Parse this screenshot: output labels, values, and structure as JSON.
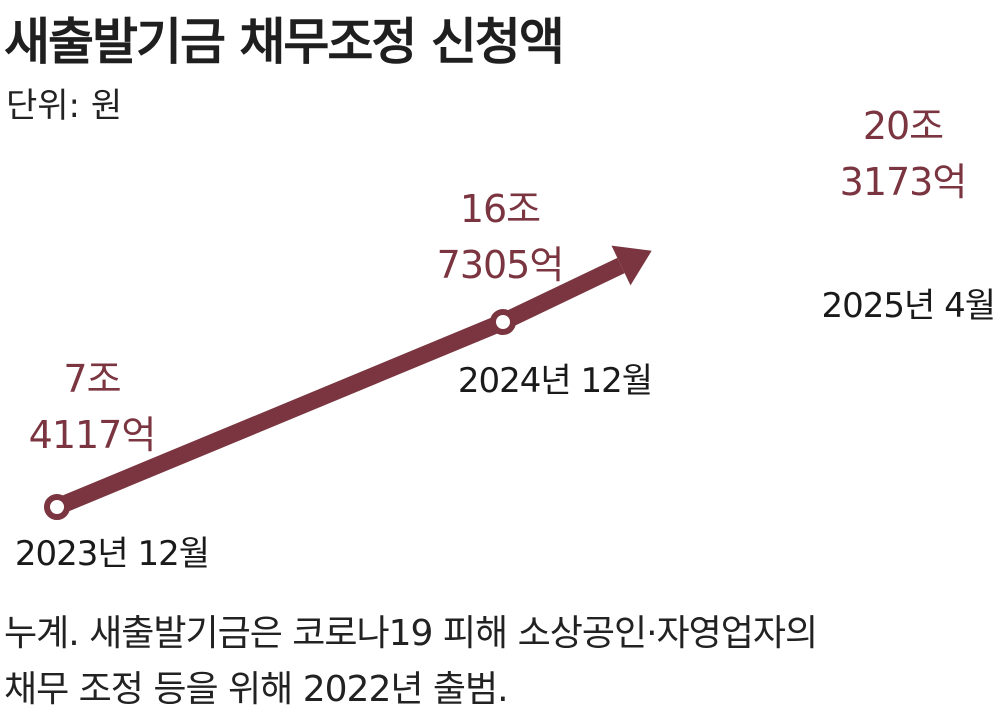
{
  "title": "새출발기금 채무조정 신청액",
  "unit_label": "단위: 원",
  "note_lines": [
    "누계. 새출발기금은 코로나19 피해 소상공인·자영업자의",
    "채무 조정 등을 위해 2022년 출범."
  ],
  "colors": {
    "line": "#7a3540",
    "value_text": "#7a3540",
    "date_text": "#1a1a1a"
  },
  "chart_data": {
    "type": "line",
    "title": "새출발기금 채무조정 신청액",
    "ylabel": "단위: 원",
    "unit": "원",
    "x": [
      "2023년 12월",
      "2024년 12월",
      "2025년 4월"
    ],
    "values": [
      74117,
      167305,
      203173
    ],
    "value_unit": "억",
    "data_labels": [
      [
        "7조",
        "4117억"
      ],
      [
        "16조",
        "7305억"
      ],
      [
        "20조",
        "3173억"
      ]
    ],
    "last_point_arrow": true,
    "grid": false
  }
}
